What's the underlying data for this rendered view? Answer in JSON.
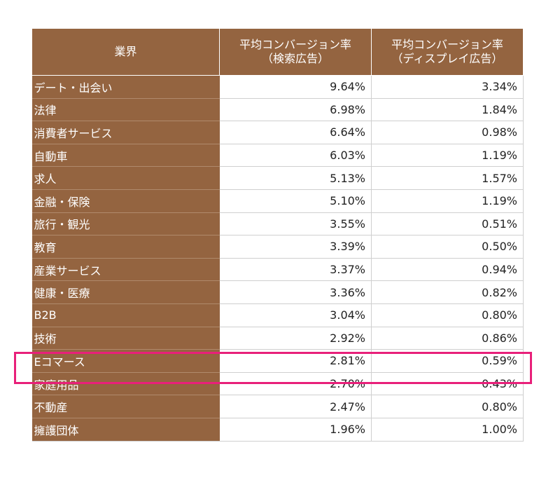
{
  "table": {
    "headers": {
      "industry": "業界",
      "search_line1": "平均コンバージョン率",
      "search_line2": "（検索広告）",
      "display_line1": "平均コンバージョン率",
      "display_line2": "（ディスプレイ広告）"
    },
    "rows": [
      {
        "industry": "デート・出会い",
        "search": "9.64%",
        "display": "3.34%"
      },
      {
        "industry": "法律",
        "search": "6.98%",
        "display": "1.84%"
      },
      {
        "industry": "消費者サービス",
        "search": "6.64%",
        "display": "0.98%"
      },
      {
        "industry": "自動車",
        "search": "6.03%",
        "display": "1.19%"
      },
      {
        "industry": "求人",
        "search": "5.13%",
        "display": "1.57%"
      },
      {
        "industry": "金融・保険",
        "search": "5.10%",
        "display": "1.19%"
      },
      {
        "industry": "旅行・観光",
        "search": "3.55%",
        "display": "0.51%"
      },
      {
        "industry": "教育",
        "search": "3.39%",
        "display": "0.50%"
      },
      {
        "industry": "産業サービス",
        "search": "3.37%",
        "display": "0.94%"
      },
      {
        "industry": "健康・医療",
        "search": "3.36%",
        "display": "0.82%"
      },
      {
        "industry": "B2B",
        "search": "3.04%",
        "display": "0.80%"
      },
      {
        "industry": "技術",
        "search": "2.92%",
        "display": "0.86%"
      },
      {
        "industry": "Eコマース",
        "search": "2.81%",
        "display": "0.59%"
      },
      {
        "industry": "家庭用品",
        "search": "2.70%",
        "display": "0.43%"
      },
      {
        "industry": "不動産",
        "search": "2.47%",
        "display": "0.80%"
      },
      {
        "industry": "擁護団体",
        "search": "1.96%",
        "display": "1.00%"
      }
    ]
  },
  "highlight": {
    "row": "Eコマース",
    "color": "#e8207a"
  },
  "colors": {
    "header_bg": "#946440",
    "industry_bg": "#946440",
    "text_light": "#ffffff",
    "text_dark": "#222222"
  }
}
